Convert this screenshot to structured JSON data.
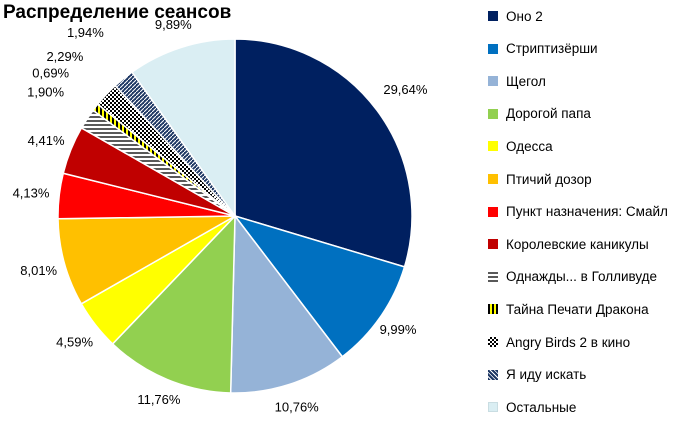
{
  "chart_data": {
    "type": "pie",
    "title": "Распределение сеансов",
    "slices": [
      {
        "label": "Оно 2",
        "value": 29.64,
        "display": "29,64%",
        "color": "#002060",
        "pattern": "solid"
      },
      {
        "label": "Стриптизёрши",
        "value": 9.99,
        "display": "9,99%",
        "color": "#0070C0",
        "pattern": "solid"
      },
      {
        "label": "Щегол",
        "value": 10.76,
        "display": "10,76%",
        "color": "#95B3D7",
        "pattern": "solid"
      },
      {
        "label": "Дорогой папа",
        "value": 11.76,
        "display": "11,76%",
        "color": "#92D050",
        "pattern": "solid"
      },
      {
        "label": "Одесса",
        "value": 4.59,
        "display": "4,59%",
        "color": "#FFFF00",
        "pattern": "solid"
      },
      {
        "label": "Птичий дозор",
        "value": 8.01,
        "display": "8,01%",
        "color": "#FFC000",
        "pattern": "solid"
      },
      {
        "label": "Пункт назначения: Смайл",
        "value": 4.13,
        "display": "4,13%",
        "color": "#FF0000",
        "pattern": "solid"
      },
      {
        "label": "Королевские каникулы",
        "value": 4.41,
        "display": "4,41%",
        "color": "#C00000",
        "pattern": "solid"
      },
      {
        "label": "Однажды... в Голливуде",
        "value": 1.9,
        "display": "1,90%",
        "color": "#595959",
        "pattern": "hlines"
      },
      {
        "label": "Тайна Печати Дракона",
        "value": 0.69,
        "display": "0,69%",
        "color": "#FFFF00",
        "pattern": "vlines"
      },
      {
        "label": "Angry Birds 2 в кино",
        "value": 2.29,
        "display": "2,29%",
        "color": "#000000",
        "pattern": "dots"
      },
      {
        "label": "Я иду искать",
        "value": 1.94,
        "display": "1,94%",
        "color": "#1F3864",
        "pattern": "diag"
      },
      {
        "label": "Остальные",
        "value": 9.89,
        "display": "9,89%",
        "color": "#DAEEF3",
        "pattern": "solid"
      }
    ]
  }
}
